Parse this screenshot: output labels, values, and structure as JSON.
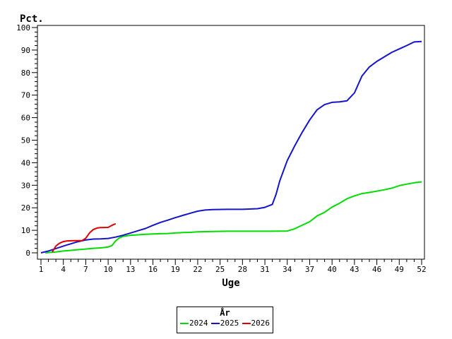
{
  "chart_data": {
    "type": "line",
    "y_axis_title": "Pct.",
    "xlabel": "Uge",
    "ylim": [
      0,
      100
    ],
    "xlim": [
      1,
      52
    ],
    "y_ticks_major": [
      0,
      10,
      20,
      30,
      40,
      50,
      60,
      70,
      80,
      90,
      100
    ],
    "y_minor_step": 2,
    "x_ticks_major": [
      1,
      4,
      7,
      10,
      13,
      16,
      19,
      22,
      25,
      28,
      31,
      34,
      37,
      40,
      43,
      46,
      49,
      52
    ],
    "x_minor_step": 1,
    "grid": false,
    "legend": {
      "title": "År",
      "position": "bottom-center"
    },
    "series": [
      {
        "name": "2024",
        "color": "#00dd00",
        "points": [
          [
            1.6,
            0
          ],
          [
            3,
            0.4
          ],
          [
            4,
            0.8
          ],
          [
            5,
            1.1
          ],
          [
            6,
            1.4
          ],
          [
            7,
            1.7
          ],
          [
            8,
            2
          ],
          [
            9,
            2.2
          ],
          [
            10,
            2.6
          ],
          [
            10.5,
            3.2
          ],
          [
            11,
            5.3
          ],
          [
            11.5,
            6.6
          ],
          [
            12,
            7.3
          ],
          [
            13,
            7.8
          ],
          [
            14,
            8
          ],
          [
            15,
            8.2
          ],
          [
            16,
            8.4
          ],
          [
            17,
            8.5
          ],
          [
            18,
            8.6
          ],
          [
            19,
            8.8
          ],
          [
            20,
            9
          ],
          [
            21,
            9.1
          ],
          [
            22,
            9.3
          ],
          [
            23,
            9.4
          ],
          [
            24,
            9.5
          ],
          [
            26,
            9.6
          ],
          [
            28,
            9.6
          ],
          [
            30,
            9.6
          ],
          [
            32,
            9.6
          ],
          [
            34,
            9.7
          ],
          [
            35,
            10.7
          ],
          [
            36,
            12.3
          ],
          [
            37,
            13.8
          ],
          [
            38,
            16.4
          ],
          [
            39,
            18
          ],
          [
            40,
            20.3
          ],
          [
            41,
            22
          ],
          [
            42,
            24
          ],
          [
            43,
            25.3
          ],
          [
            44,
            26.3
          ],
          [
            45,
            26.8
          ],
          [
            46,
            27.4
          ],
          [
            47,
            28
          ],
          [
            48,
            28.7
          ],
          [
            49,
            29.8
          ],
          [
            50,
            30.5
          ],
          [
            51,
            31.1
          ],
          [
            52,
            31.5
          ]
        ]
      },
      {
        "name": "2025",
        "color": "#1414cc",
        "points": [
          [
            1,
            0
          ],
          [
            2,
            0.8
          ],
          [
            3,
            1.9
          ],
          [
            4,
            3
          ],
          [
            5,
            4
          ],
          [
            6,
            5
          ],
          [
            7,
            5.7
          ],
          [
            8,
            6.1
          ],
          [
            9,
            6.2
          ],
          [
            10,
            6.4
          ],
          [
            11,
            7
          ],
          [
            12,
            7.8
          ],
          [
            13,
            8.8
          ],
          [
            14,
            9.8
          ],
          [
            15,
            10.8
          ],
          [
            16,
            12.2
          ],
          [
            17,
            13.5
          ],
          [
            18,
            14.5
          ],
          [
            19,
            15.6
          ],
          [
            20,
            16.6
          ],
          [
            21,
            17.6
          ],
          [
            22,
            18.5
          ],
          [
            23,
            19
          ],
          [
            24,
            19.2
          ],
          [
            26,
            19.3
          ],
          [
            28,
            19.3
          ],
          [
            30,
            19.6
          ],
          [
            31,
            20.2
          ],
          [
            32,
            21.5
          ],
          [
            32.5,
            26
          ],
          [
            33,
            32
          ],
          [
            34,
            41
          ],
          [
            35,
            47.5
          ],
          [
            35.5,
            50.5
          ],
          [
            36,
            53.5
          ],
          [
            37,
            59
          ],
          [
            38,
            63.5
          ],
          [
            39,
            65.8
          ],
          [
            40,
            66.8
          ],
          [
            41,
            67
          ],
          [
            42,
            67.5
          ],
          [
            43,
            71
          ],
          [
            44,
            78.5
          ],
          [
            45,
            82.5
          ],
          [
            46,
            85
          ],
          [
            47,
            87
          ],
          [
            48,
            89
          ],
          [
            49,
            90.5
          ],
          [
            50,
            92
          ],
          [
            51,
            93.6
          ],
          [
            52,
            93.8
          ]
        ]
      },
      {
        "name": "2026",
        "color": "#dd0000",
        "points": [
          [
            2.5,
            0.3
          ],
          [
            3,
            3
          ],
          [
            3.5,
            4.3
          ],
          [
            4,
            5
          ],
          [
            4.5,
            5.3
          ],
          [
            5.5,
            5.4
          ],
          [
            6.5,
            5.4
          ],
          [
            7,
            6.5
          ],
          [
            7.5,
            8.8
          ],
          [
            8,
            10.3
          ],
          [
            8.5,
            11
          ],
          [
            9,
            11.2
          ],
          [
            10,
            11.3
          ],
          [
            10.5,
            12.2
          ],
          [
            11,
            12.9
          ]
        ]
      }
    ]
  }
}
